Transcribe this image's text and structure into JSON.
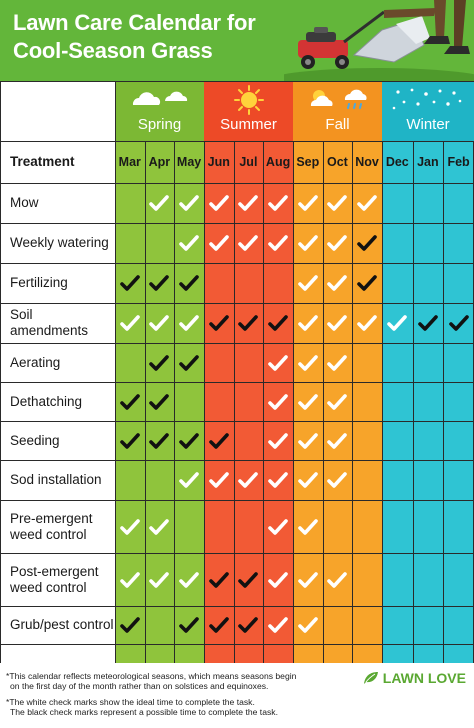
{
  "header": {
    "title_line1": "Lawn Care Calendar for",
    "title_line2": "Cool-Season Grass"
  },
  "seasons": [
    {
      "name": "Spring",
      "icon": "cloud-icon",
      "color": "#8fc43c"
    },
    {
      "name": "Summer",
      "icon": "sun-icon",
      "color": "#f25a35"
    },
    {
      "name": "Fall",
      "icon": "sun-cloud-rain-icon",
      "color": "#f7a42a"
    },
    {
      "name": "Winter",
      "icon": "snowflake-icon",
      "color": "#2fc4d3"
    }
  ],
  "table": {
    "treatment_header": "Treatment",
    "months": [
      "Mar",
      "Apr",
      "May",
      "Jun",
      "Jul",
      "Aug",
      "Sep",
      "Oct",
      "Nov",
      "Dec",
      "Jan",
      "Feb"
    ],
    "legend": {
      "W": "ideal time (white check)",
      "B": "possible time (black check)",
      "-": "none"
    },
    "rows": [
      {
        "label": "Mow",
        "checks": [
          "-",
          "W",
          "W",
          "W",
          "W",
          "W",
          "W",
          "W",
          "W",
          "-",
          "-",
          "-"
        ]
      },
      {
        "label": "Weekly watering",
        "checks": [
          "-",
          "-",
          "W",
          "W",
          "W",
          "W",
          "W",
          "W",
          "B",
          "-",
          "-",
          "-"
        ]
      },
      {
        "label": "Fertilizing",
        "checks": [
          "B",
          "B",
          "B",
          "-",
          "-",
          "-",
          "W",
          "W",
          "B",
          "-",
          "-",
          "-"
        ]
      },
      {
        "label": "Soil amendments",
        "checks": [
          "W",
          "W",
          "W",
          "B",
          "B",
          "B",
          "W",
          "W",
          "W",
          "W",
          "B",
          "B"
        ]
      },
      {
        "label": "Aerating",
        "checks": [
          "-",
          "B",
          "B",
          "-",
          "-",
          "W",
          "W",
          "W",
          "-",
          "-",
          "-",
          "-"
        ]
      },
      {
        "label": "Dethatching",
        "checks": [
          "B",
          "B",
          "-",
          "-",
          "-",
          "W",
          "W",
          "W",
          "-",
          "-",
          "-",
          "-"
        ]
      },
      {
        "label": "Seeding",
        "checks": [
          "B",
          "B",
          "B",
          "B",
          "-",
          "W",
          "W",
          "W",
          "-",
          "-",
          "-",
          "-"
        ]
      },
      {
        "label": "Sod installation",
        "checks": [
          "-",
          "-",
          "W",
          "W",
          "W",
          "W",
          "W",
          "W",
          "-",
          "-",
          "-",
          "-"
        ]
      },
      {
        "label": "Pre-emergent weed control",
        "checks": [
          "W",
          "W",
          "-",
          "-",
          "-",
          "W",
          "W",
          "-",
          "-",
          "-",
          "-",
          "-"
        ]
      },
      {
        "label": "Post-emergent weed control",
        "checks": [
          "W",
          "W",
          "W",
          "B",
          "B",
          "W",
          "W",
          "W",
          "-",
          "-",
          "-",
          "-"
        ]
      },
      {
        "label": "Grub/pest control",
        "checks": [
          "B",
          "-",
          "B",
          "B",
          "B",
          "W",
          "W",
          "-",
          "-",
          "-",
          "-",
          "-"
        ]
      }
    ]
  },
  "footer": {
    "note1_line1": "*This calendar reflects meteorological seasons, which means seasons begin",
    "note1_line2": "on the first day of the month rather than on solstices and equinoxes.",
    "note2_line1": "*The white check marks show the ideal time to complete the task.",
    "note2_line2": "The black check marks represent a possible time to complete the task.",
    "brand": "LAWN LOVE",
    "brand_icon": "leaf-icon"
  },
  "colors": {
    "header_green": "#63b63a",
    "check_white": "#ffffff",
    "check_black": "#111111"
  }
}
